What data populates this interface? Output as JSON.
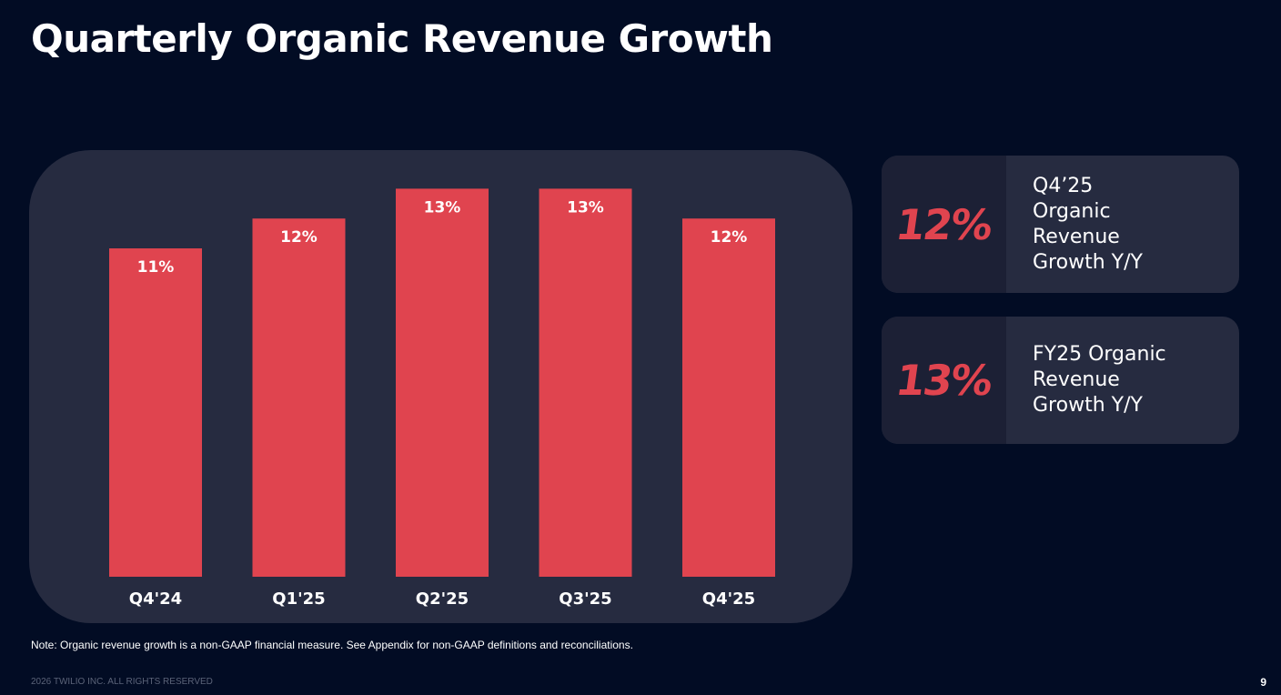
{
  "title": "Quarterly Organic Revenue Growth",
  "chart_data": {
    "type": "bar",
    "categories": [
      "Q4'24",
      "Q1'25",
      "Q2'25",
      "Q3'25",
      "Q4'25"
    ],
    "values": [
      11,
      12,
      13,
      13,
      12
    ],
    "data_labels": [
      "11%",
      "12%",
      "13%",
      "13%",
      "12%"
    ],
    "ylim": [
      0,
      13.5
    ],
    "grid": false,
    "colors": {
      "bar": "#e0444f",
      "panel": "#262b40"
    }
  },
  "kpis": [
    {
      "value": "12%",
      "label": "Q4’25 Organic Revenue Growth Y/Y"
    },
    {
      "value": "13%",
      "label": "FY25 Organic Revenue Growth Y/Y"
    }
  ],
  "note": "Note: Organic revenue growth is a non-GAAP financial measure. See Appendix for non-GAAP definitions and reconciliations.",
  "footer": "2026 TWILIO INC. ALL RIGHTS RESERVED",
  "page_number": "9",
  "colors": {
    "background": "#020c24",
    "accent": "#e0444f",
    "card": "#262b40",
    "card_dark": "#1c2035"
  }
}
